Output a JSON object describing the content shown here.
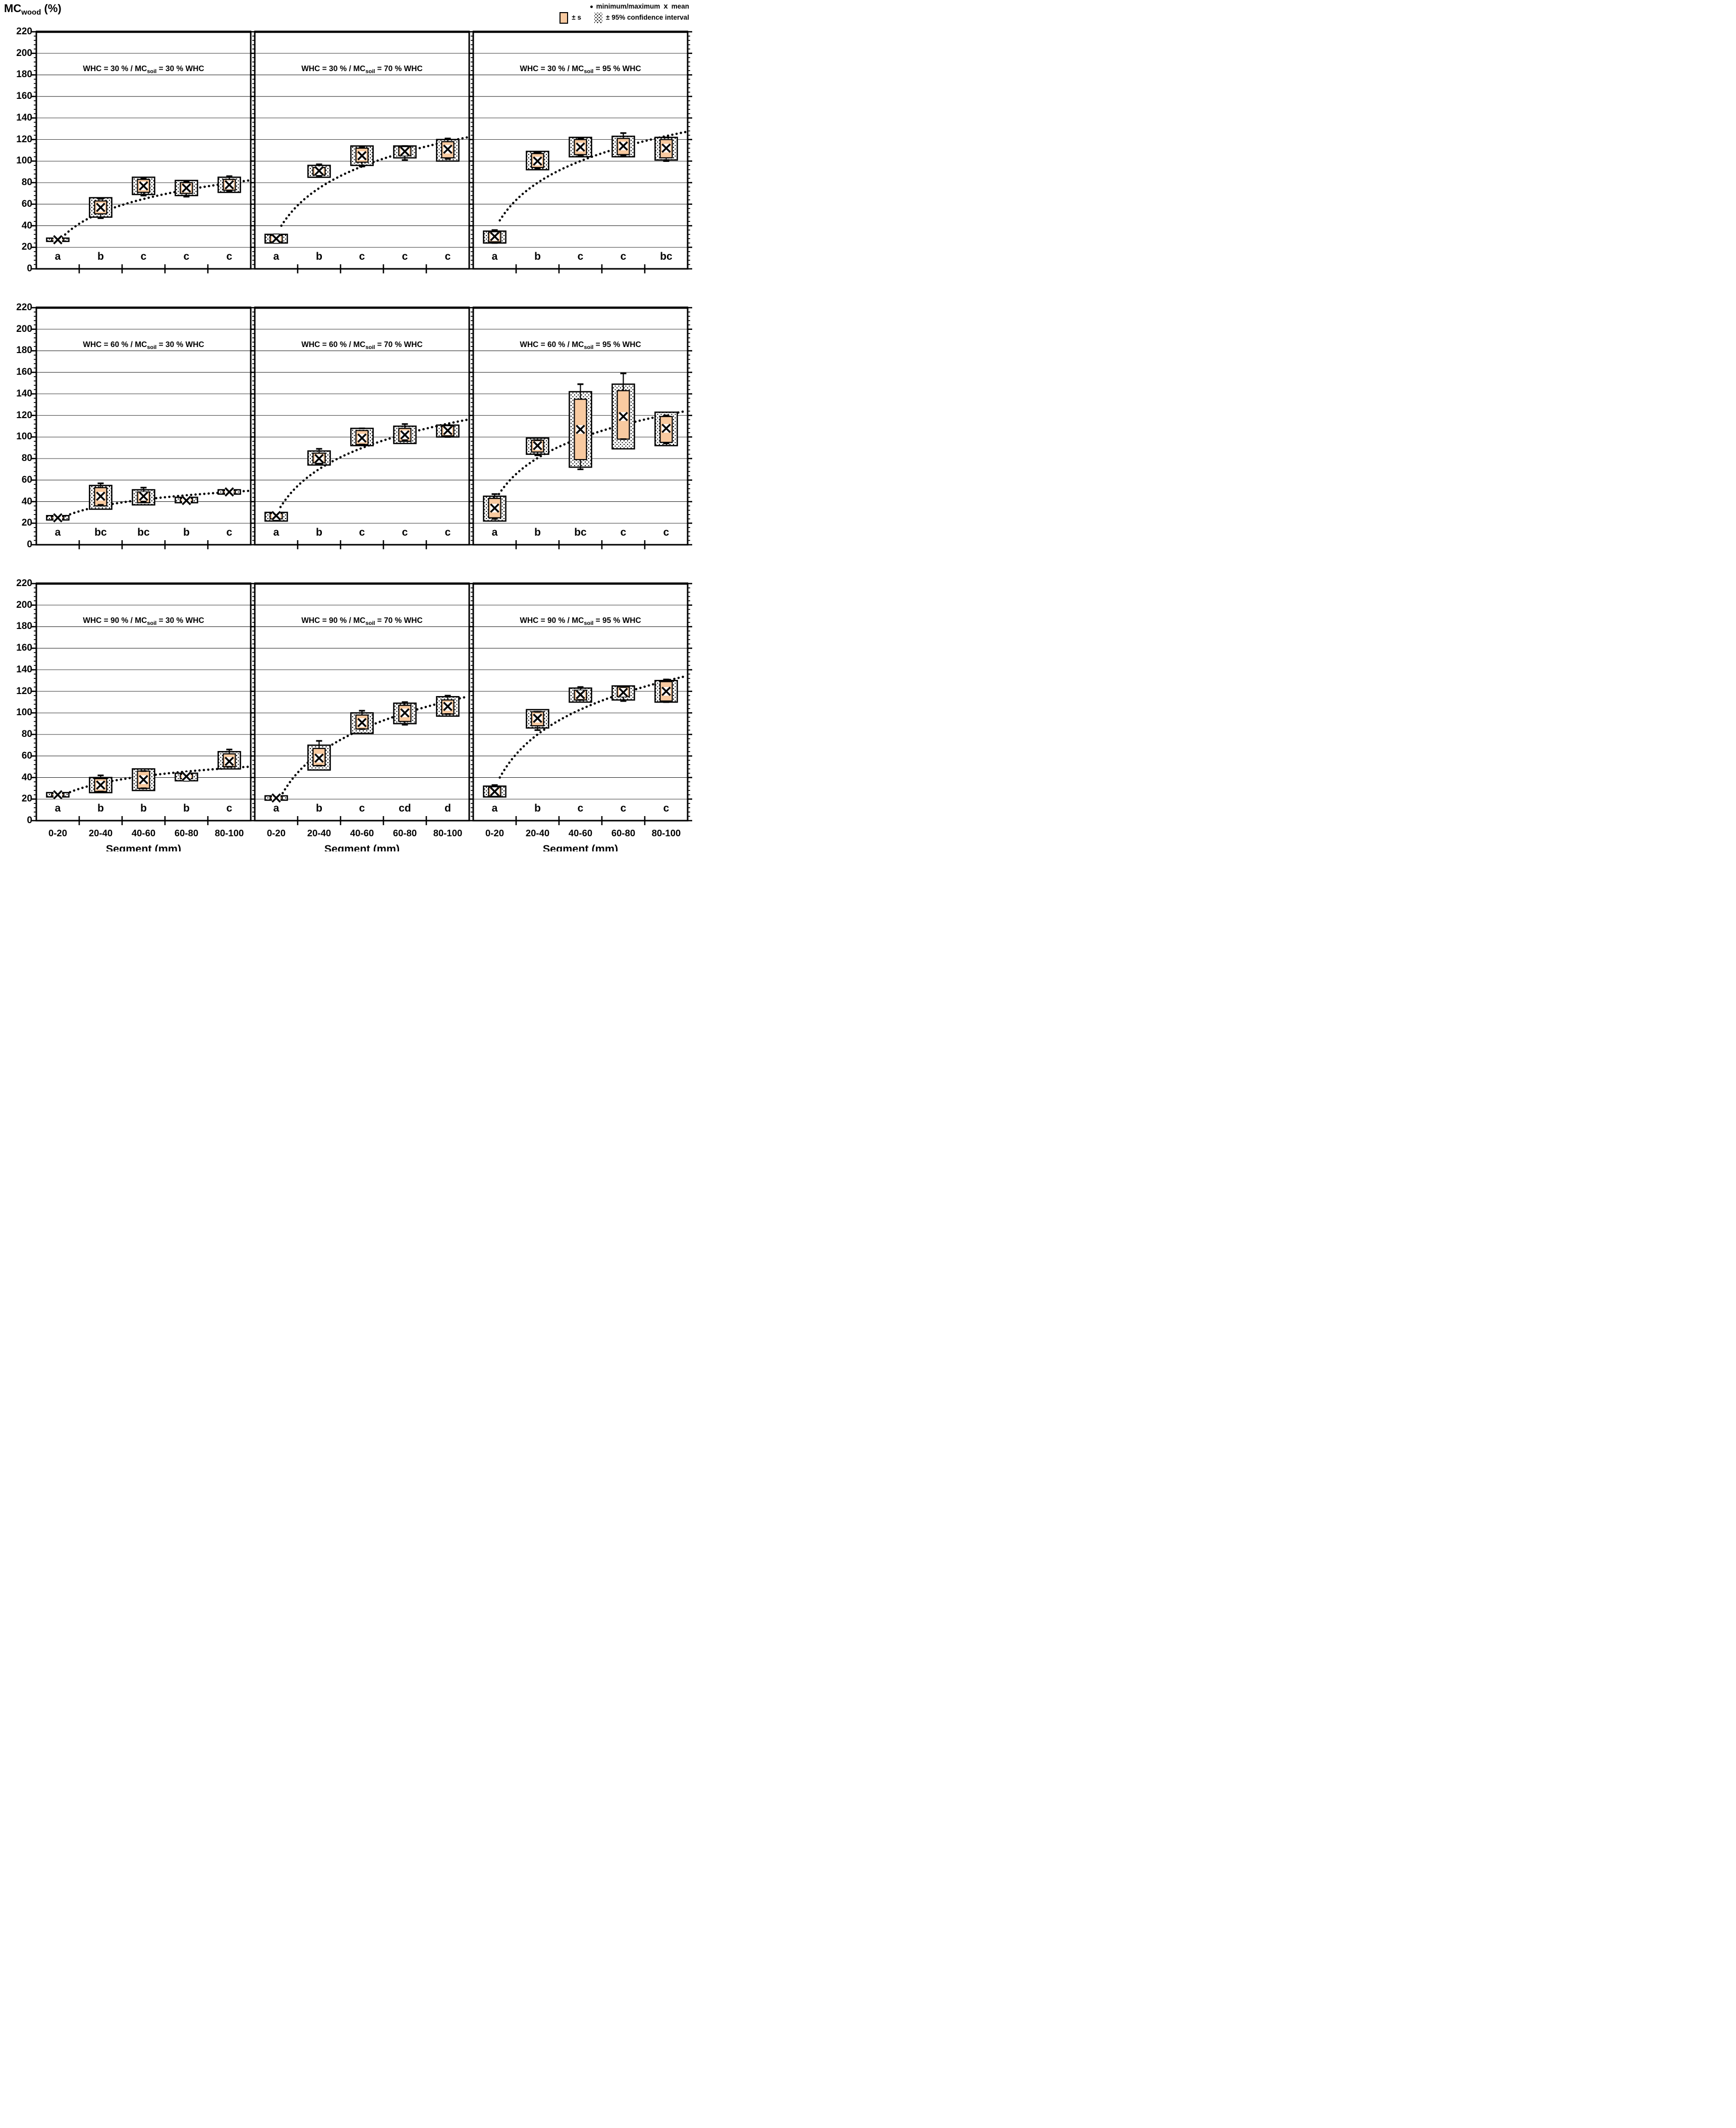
{
  "header": {
    "ylabel_main": "MC",
    "ylabel_sub": "wood",
    "ylabel_unit": " (%)"
  },
  "legend": {
    "minmax_label": "minimum/maximum",
    "mean_symbol": "x",
    "mean_label": "mean",
    "s_label": "± s",
    "ci_label": "± 95% confidence interval"
  },
  "colors": {
    "s_box": "#F8CAA0",
    "ink": "#000000",
    "grid": "#000000"
  },
  "axis": {
    "ylim": [
      0,
      220
    ],
    "y_tick_step": 20,
    "y_ticks": [
      "0",
      "20",
      "40",
      "60",
      "80",
      "100",
      "120",
      "140",
      "160",
      "180",
      "200",
      "220"
    ],
    "x_categories": [
      "0-20",
      "20-40",
      "40-60",
      "60-80",
      "80-100"
    ],
    "x_title": "Segment (mm)"
  },
  "title_fragments": {
    "prefix": "WHC = ",
    "mid": " % / MC",
    "sub": "soil",
    "eq": " = ",
    "suffix": " % WHC"
  },
  "chart_data": [
    {
      "type": "box",
      "whc": "30",
      "mc_soil": "30",
      "letters": [
        "a",
        "b",
        "c",
        "c",
        "c"
      ],
      "boxes": [
        {
          "mean": 27,
          "s": [
            26,
            28
          ],
          "ci": [
            25.5,
            28.5
          ],
          "min": 25,
          "max": 29
        },
        {
          "mean": 57,
          "s": [
            51,
            63
          ],
          "ci": [
            48,
            66
          ],
          "min": 47,
          "max": 65
        },
        {
          "mean": 77,
          "s": [
            71,
            83
          ],
          "ci": [
            69,
            85
          ],
          "min": 68,
          "max": 84
        },
        {
          "mean": 75,
          "s": [
            70,
            80
          ],
          "ci": [
            68,
            82
          ],
          "min": 67,
          "max": 81
        },
        {
          "mean": 78,
          "s": [
            73,
            83
          ],
          "ci": [
            71,
            85
          ],
          "min": 72,
          "max": 86
        }
      ],
      "trend": {
        "x0": 0.6,
        "y0": 29,
        "x1": 4.95,
        "y1": 82
      }
    },
    {
      "type": "box",
      "whc": "30",
      "mc_soil": "70",
      "letters": [
        "a",
        "b",
        "c",
        "c",
        "c"
      ],
      "boxes": [
        {
          "mean": 28,
          "s": [
            25,
            31
          ],
          "ci": [
            24,
            32
          ],
          "min": 24,
          "max": 32
        },
        {
          "mean": 91,
          "s": [
            87,
            94
          ],
          "ci": [
            85,
            96
          ],
          "min": 86,
          "max": 97
        },
        {
          "mean": 105,
          "s": [
            99,
            112
          ],
          "ci": [
            96,
            114
          ],
          "min": 95,
          "max": 113
        },
        {
          "mean": 109,
          "s": [
            105,
            113
          ],
          "ci": [
            103,
            114
          ],
          "min": 101,
          "max": 114
        },
        {
          "mean": 111,
          "s": [
            103,
            118
          ],
          "ci": [
            100,
            120
          ],
          "min": 102,
          "max": 121
        }
      ],
      "trend": {
        "x0": 0.62,
        "y0": 40,
        "x1": 4.95,
        "y1": 122
      }
    },
    {
      "type": "box",
      "whc": "30",
      "mc_soil": "95",
      "letters": [
        "a",
        "b",
        "c",
        "c",
        "bc"
      ],
      "boxes": [
        {
          "mean": 30,
          "s": [
            25,
            34
          ],
          "ci": [
            24,
            35
          ],
          "min": 24,
          "max": 36
        },
        {
          "mean": 100,
          "s": [
            94,
            107
          ],
          "ci": [
            92,
            109
          ],
          "min": 93,
          "max": 108
        },
        {
          "mean": 113,
          "s": [
            106,
            120
          ],
          "ci": [
            104,
            122
          ],
          "min": 105,
          "max": 121
        },
        {
          "mean": 114,
          "s": [
            106,
            121
          ],
          "ci": [
            104,
            123
          ],
          "min": 105,
          "max": 126
        },
        {
          "mean": 112,
          "s": [
            103,
            120
          ],
          "ci": [
            101,
            122
          ],
          "min": 100,
          "max": 122
        }
      ],
      "trend": {
        "x0": 0.62,
        "y0": 45,
        "x1": 4.95,
        "y1": 127
      }
    },
    {
      "type": "box",
      "whc": "60",
      "mc_soil": "30",
      "letters": [
        "a",
        "bc",
        "bc",
        "b",
        "c"
      ],
      "boxes": [
        {
          "mean": 25,
          "s": [
            24,
            26
          ],
          "ci": [
            23,
            27
          ],
          "min": 23,
          "max": 27
        },
        {
          "mean": 45,
          "s": [
            36,
            53
          ],
          "ci": [
            33,
            55
          ],
          "min": 37,
          "max": 57
        },
        {
          "mean": 45,
          "s": [
            39,
            49
          ],
          "ci": [
            37,
            51
          ],
          "min": 40,
          "max": 53
        },
        {
          "mean": 41,
          "s": [
            40,
            43
          ],
          "ci": [
            39,
            44
          ],
          "min": 39,
          "max": 44
        },
        {
          "mean": 49,
          "s": [
            48,
            50
          ],
          "ci": [
            47,
            51
          ],
          "min": 47,
          "max": 51
        }
      ],
      "trend": {
        "x0": 0.6,
        "y0": 25,
        "x1": 4.95,
        "y1": 50
      }
    },
    {
      "type": "box",
      "whc": "60",
      "mc_soil": "70",
      "letters": [
        "a",
        "b",
        "c",
        "c",
        "c"
      ],
      "boxes": [
        {
          "mean": 27,
          "s": [
            24,
            29
          ],
          "ci": [
            22,
            30
          ],
          "min": 23,
          "max": 30
        },
        {
          "mean": 80,
          "s": [
            76,
            85
          ],
          "ci": [
            74,
            87
          ],
          "min": 75,
          "max": 89
        },
        {
          "mean": 99,
          "s": [
            93,
            106
          ],
          "ci": [
            92,
            108
          ],
          "min": 93,
          "max": 108
        },
        {
          "mean": 102,
          "s": [
            96,
            108
          ],
          "ci": [
            94,
            110
          ],
          "min": 97,
          "max": 112
        },
        {
          "mean": 106,
          "s": [
            101,
            110
          ],
          "ci": [
            100,
            111
          ],
          "min": 100,
          "max": 111
        }
      ],
      "trend": {
        "x0": 0.6,
        "y0": 35,
        "x1": 4.95,
        "y1": 116
      }
    },
    {
      "type": "box",
      "whc": "60",
      "mc_soil": "95",
      "letters": [
        "a",
        "b",
        "bc",
        "c",
        "c"
      ],
      "boxes": [
        {
          "mean": 34,
          "s": [
            25,
            43
          ],
          "ci": [
            22,
            45
          ],
          "min": 24,
          "max": 47
        },
        {
          "mean": 92,
          "s": [
            86,
            97
          ],
          "ci": [
            84,
            99
          ],
          "min": 83,
          "max": 97
        },
        {
          "mean": 107,
          "s": [
            79,
            135
          ],
          "ci": [
            72,
            142
          ],
          "min": 70,
          "max": 149
        },
        {
          "mean": 119,
          "s": [
            98,
            143
          ],
          "ci": [
            89,
            149
          ],
          "min": 98,
          "max": 159
        },
        {
          "mean": 108,
          "s": [
            95,
            119
          ],
          "ci": [
            92,
            123
          ],
          "min": 94,
          "max": 120
        }
      ],
      "trend": {
        "x0": 0.6,
        "y0": 47,
        "x1": 4.95,
        "y1": 124
      }
    },
    {
      "type": "box",
      "whc": "90",
      "mc_soil": "30",
      "letters": [
        "a",
        "b",
        "b",
        "b",
        "c"
      ],
      "boxes": [
        {
          "mean": 24,
          "s": [
            23,
            25
          ],
          "ci": [
            22,
            26
          ],
          "min": 22,
          "max": 26
        },
        {
          "mean": 33,
          "s": [
            27,
            39
          ],
          "ci": [
            26,
            40
          ],
          "min": 27,
          "max": 42
        },
        {
          "mean": 38,
          "s": [
            30,
            46
          ],
          "ci": [
            28,
            48
          ],
          "min": 30,
          "max": 46
        },
        {
          "mean": 41,
          "s": [
            39,
            43
          ],
          "ci": [
            37,
            44
          ],
          "min": 37,
          "max": 43
        },
        {
          "mean": 55,
          "s": [
            50,
            62
          ],
          "ci": [
            48,
            64
          ],
          "min": 50,
          "max": 66
        }
      ],
      "trend": {
        "x0": 0.6,
        "y0": 23,
        "x1": 4.95,
        "y1": 50
      }
    },
    {
      "type": "box",
      "whc": "90",
      "mc_soil": "70",
      "letters": [
        "a",
        "b",
        "c",
        "cd",
        "d"
      ],
      "boxes": [
        {
          "mean": 21,
          "s": [
            20,
            22
          ],
          "ci": [
            19,
            23
          ],
          "min": 19,
          "max": 23
        },
        {
          "mean": 58,
          "s": [
            51,
            67
          ],
          "ci": [
            47,
            70
          ],
          "min": 51,
          "max": 74
        },
        {
          "mean": 91,
          "s": [
            85,
            98
          ],
          "ci": [
            81,
            100
          ],
          "min": 85,
          "max": 102
        },
        {
          "mean": 100,
          "s": [
            92,
            107
          ],
          "ci": [
            90,
            109
          ],
          "min": 89,
          "max": 110
        },
        {
          "mean": 106,
          "s": [
            99,
            112
          ],
          "ci": [
            97,
            115
          ],
          "min": 99,
          "max": 116
        }
      ],
      "trend": {
        "x0": 0.6,
        "y0": 22,
        "x1": 4.95,
        "y1": 115
      }
    },
    {
      "type": "box",
      "whc": "90",
      "mc_soil": "95",
      "letters": [
        "a",
        "b",
        "c",
        "c",
        "c"
      ],
      "boxes": [
        {
          "mean": 27,
          "s": [
            23,
            31
          ],
          "ci": [
            22,
            32
          ],
          "min": 23,
          "max": 33
        },
        {
          "mean": 95,
          "s": [
            88,
            101
          ],
          "ci": [
            86,
            103
          ],
          "min": 84,
          "max": 101
        },
        {
          "mean": 117,
          "s": [
            112,
            121
          ],
          "ci": [
            110,
            123
          ],
          "min": 112,
          "max": 124
        },
        {
          "mean": 119,
          "s": [
            115,
            124
          ],
          "ci": [
            112,
            125
          ],
          "min": 111,
          "max": 124
        },
        {
          "mean": 120,
          "s": [
            111,
            129
          ],
          "ci": [
            110,
            130
          ],
          "min": 110,
          "max": 131
        }
      ],
      "trend": {
        "x0": 0.62,
        "y0": 40,
        "x1": 4.95,
        "y1": 134
      }
    }
  ]
}
